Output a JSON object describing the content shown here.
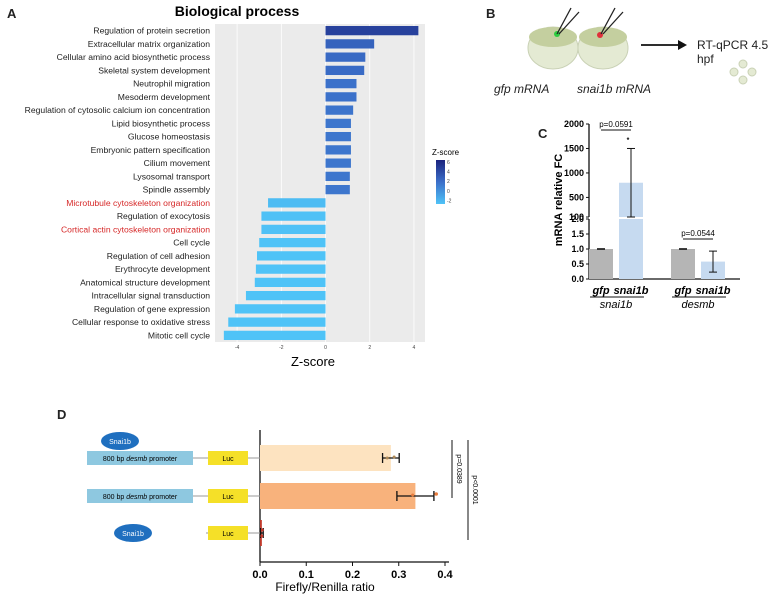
{
  "panels": {
    "A": "A",
    "B": "B",
    "C": "C",
    "D": "D"
  },
  "panel_b": {
    "embryo1_label": "gfp mRNA",
    "embryo2_label": "snai1b mRNA",
    "assay_label": "RT-qPCR 4.5 hpf",
    "dot_colors": [
      "#2ecc40",
      "#e0303a"
    ]
  },
  "chart_data": [
    {
      "type": "bar",
      "orientation": "horizontal",
      "title": "Biological process",
      "xlabel": "Z-score",
      "ylabel": "",
      "xlim": [
        -5,
        4.5
      ],
      "xticks": [
        -4,
        -2,
        0,
        2,
        4
      ],
      "grid": true,
      "legend": {
        "title": "Z-score",
        "ticks": [
          "6",
          "4",
          "2",
          "0",
          "-2"
        ],
        "placement": "right"
      },
      "categories": [
        "Regulation of protein secretion",
        "Extracellular matrix organization",
        "Cellular amino acid biosynthetic process",
        "Skeletal system development",
        "Neutrophil migration",
        "Mesoderm development",
        "Regulation of cytosolic calcium ion concentration",
        "Lipid biosynthetic process",
        "Glucose homeostasis",
        "Embryonic pattern specification",
        "Cilium movement",
        "Lysosomal transport",
        "Spindle assembly",
        "Microtubule cytoskeleton organization",
        "Regulation of exocytosis",
        "Cortical actin cytoskeleton organization",
        "Cell cycle",
        "Regulation of cell adhesion",
        "Erythrocyte development",
        "Anatomical structure development",
        "Intracellular signal transduction",
        "Regulation of gene expression",
        "Cellular response to oxidative stress",
        "Mitotic cell cycle"
      ],
      "values": [
        4.2,
        2.2,
        1.8,
        1.75,
        1.4,
        1.4,
        1.25,
        1.15,
        1.15,
        1.15,
        1.15,
        1.1,
        1.1,
        -2.6,
        -2.9,
        -2.9,
        -3.0,
        -3.1,
        -3.15,
        -3.2,
        -3.6,
        -4.1,
        -4.4,
        -4.6
      ],
      "highlighted_colors": [
        "#d62828"
      ],
      "highlighted": [
        "Microtubule cytoskeleton organization",
        "Cortical actin cytoskeleton organization"
      ]
    },
    {
      "type": "bar",
      "ylabel": "mRNA relative FC",
      "axis_break": true,
      "upper_yticks": [
        "2000",
        "1500",
        "1000",
        "500",
        "100"
      ],
      "lower_yticks": [
        "2.0",
        "1.5",
        "1.0",
        "0.5",
        "0.0"
      ],
      "groups": [
        "snai1b",
        "desmb"
      ],
      "categories": [
        "gfp",
        "snai1b",
        "gfp",
        "snai1b"
      ],
      "values": [
        1.0,
        800,
        1.0,
        0.58
      ],
      "errors": [
        0.01,
        700,
        0.01,
        0.35
      ],
      "bar_colors": [
        "#b5b5b5",
        "#c6daf0",
        "#b5b5b5",
        "#c6daf0"
      ],
      "pvalues": [
        "p=0.0591",
        "p=0.0544"
      ]
    },
    {
      "type": "bar",
      "orientation": "horizontal",
      "xlabel": "Firefly/Renilla ratio",
      "xlim": [
        0,
        0.4
      ],
      "xticks": [
        "0.0",
        "0.1",
        "0.2",
        "0.3",
        "0.4"
      ],
      "rows": [
        {
          "promoter": "800 bp desmb promoter",
          "luc": "Luc",
          "protein": "Snai1b",
          "value": 0.283,
          "error": 0.018,
          "color": "#fde3c0"
        },
        {
          "promoter": "800 bp desmb promoter",
          "luc": "Luc",
          "protein": "",
          "value": 0.336,
          "error": 0.04,
          "color": "#f8b27c"
        },
        {
          "promoter": "",
          "luc": "Luc",
          "protein": "Snai1b",
          "value": 0.004,
          "error": 0.003,
          "color": "#c0392b"
        }
      ],
      "pvalues": [
        "p=0.0389",
        "p<0.0001"
      ],
      "construct_parts": {
        "promoter_prefix": "800 bp ",
        "promoter_gene": "desmb",
        "promoter_suffix": " promoter"
      }
    }
  ]
}
